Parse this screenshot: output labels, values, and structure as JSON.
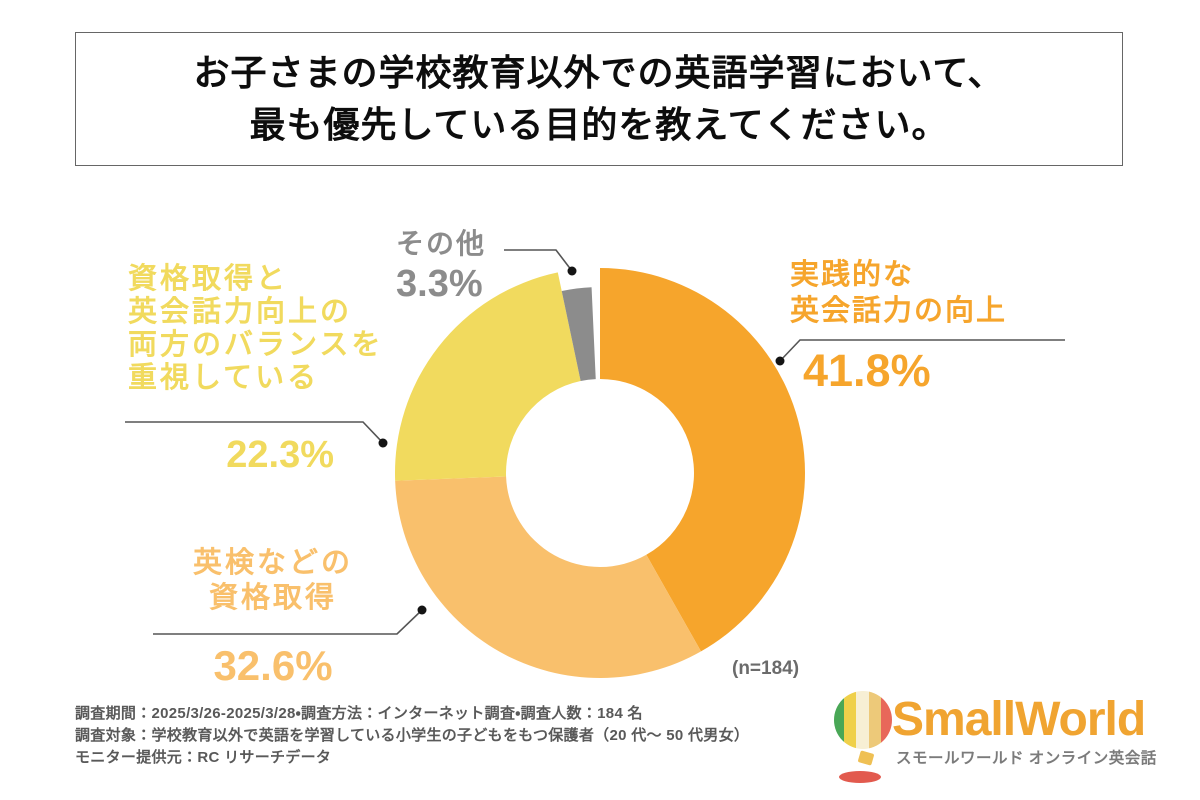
{
  "title": {
    "line1": "お子さまの学校教育以外での英語学習において、",
    "line2": "最も優先している目的を教えてください。"
  },
  "chart_data": {
    "type": "pie",
    "variant": "donut",
    "question": "お子さまの学校教育以外での英語学習において、最も優先している目的を教えてください。",
    "sample_label": "(n=184)",
    "sample_size": 184,
    "start_angle_deg": 0,
    "direction": "clockwise",
    "segments": [
      {
        "label": "実践的な英会話力の向上",
        "label_lines": [
          "実践的な",
          "英会話力の向上"
        ],
        "value_pct": 41.8,
        "pct_label": "41.8%",
        "color": "#F6A52C"
      },
      {
        "label": "英検などの資格取得",
        "label_lines": [
          "英検などの",
          "資格取得"
        ],
        "value_pct": 32.6,
        "pct_label": "32.6%",
        "color": "#F9C06C"
      },
      {
        "label": "資格取得と英会話力向上の両方のバランスを重視している",
        "label_lines": [
          "資格取得と",
          "英会話力向上の",
          "両方のバランスを",
          "重視している"
        ],
        "value_pct": 22.3,
        "pct_label": "22.3%",
        "color": "#F1DA5E"
      },
      {
        "label": "その他",
        "label_lines": [
          "その他"
        ],
        "value_pct": 3.3,
        "pct_label": "3.3%",
        "color": "#8C8C8C"
      }
    ],
    "leader_line_color": "#555555",
    "leader_dot_color": "#141414"
  },
  "survey_notes": {
    "line1": "調査期間：2025/3/26-2025/3/28・調査方法：インターネット調査・調査人数：184 名",
    "line2": "調査対象：学校教育以外で英語を学習している小学生の子どもをもつ保護者（20 代～ 50 代男女）",
    "line3": "モニター提供元：RC リサーチデータ"
  },
  "logo": {
    "brand": "SmallWorld",
    "subtitle": "スモールワールド オンライン英会話",
    "brand_color": "#F0A431",
    "subtitle_color": "#7B7B7B",
    "balloon_colors": [
      "#49A756",
      "#EFD04A",
      "#F7EFD4",
      "#EDC979",
      "#E8685A"
    ],
    "shadow_color": "#E25A4E",
    "basket_color": "#EFC054"
  }
}
